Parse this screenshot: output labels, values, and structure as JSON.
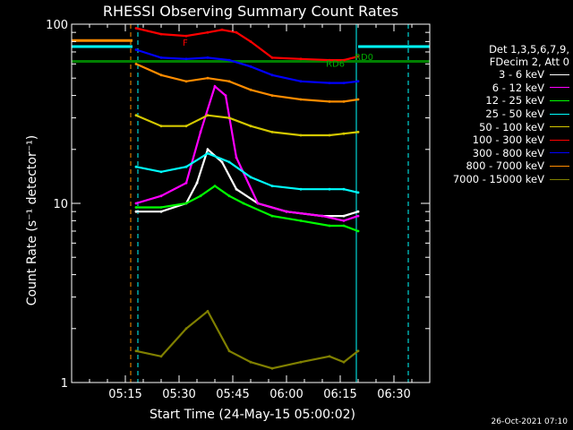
{
  "chart_data": {
    "type": "line",
    "title": "RHESSI Observing Summary Count Rates",
    "xlabel": "Start Time (24-May-15 05:00:02)",
    "ylabel": "Count Rate (s⁻¹ detector⁻¹)",
    "yscale": "log",
    "ylim": [
      1,
      100
    ],
    "xlim_minutes": [
      0,
      100
    ],
    "x_ticks": [
      "05:15",
      "05:30",
      "05:45",
      "06:00",
      "06:15",
      "06:30"
    ],
    "x_tick_minutes": [
      15,
      30,
      45,
      60,
      75,
      90
    ],
    "y_ticks": [
      "1",
      "10",
      "100"
    ],
    "legend_header": [
      "Det 1,3,5,6,7,9,",
      "FDecim 2, Att 0"
    ],
    "series": [
      {
        "name": "3 - 6 keV",
        "color": "#ffffff",
        "x": [
          18,
          25,
          32,
          35,
          38,
          42,
          46,
          52,
          60,
          70,
          76,
          80
        ],
        "y": [
          9,
          9,
          10,
          13,
          20,
          17,
          12,
          10,
          9,
          8.5,
          8.5,
          9
        ]
      },
      {
        "name": "6 - 12 keV",
        "color": "#ff00ff",
        "x": [
          18,
          25,
          32,
          36,
          40,
          43,
          46,
          52,
          60,
          70,
          76,
          80
        ],
        "y": [
          10,
          11,
          13,
          25,
          45,
          40,
          18,
          10,
          9,
          8.5,
          8,
          8.5
        ]
      },
      {
        "name": "12 - 25 keV",
        "color": "#00ff00",
        "x": [
          18,
          25,
          32,
          36,
          40,
          44,
          48,
          56,
          64,
          72,
          76,
          80
        ],
        "y": [
          9.5,
          9.5,
          10,
          11,
          12.5,
          11,
          10,
          8.5,
          8,
          7.5,
          7.5,
          7
        ]
      },
      {
        "name": "25 - 50 keV",
        "color": "#00ffff",
        "x": [
          18,
          25,
          32,
          38,
          44,
          50,
          56,
          64,
          72,
          76,
          80
        ],
        "y": [
          16,
          15,
          16,
          19,
          17,
          14,
          12.5,
          12,
          12,
          12,
          11.5
        ]
      },
      {
        "name": "50 - 100 keV",
        "color": "#d4c800",
        "x": [
          18,
          25,
          32,
          38,
          44,
          50,
          56,
          64,
          72,
          76,
          80
        ],
        "y": [
          31,
          27,
          27,
          31,
          30,
          27,
          25,
          24,
          24,
          24.5,
          25
        ]
      },
      {
        "name": "100 - 300 keV",
        "color": "#ff0000",
        "x": [
          18,
          25,
          32,
          38,
          42,
          46,
          50,
          56,
          64,
          72,
          76,
          80
        ],
        "y": [
          95,
          88,
          86,
          90,
          93,
          90,
          80,
          65,
          64,
          63,
          63,
          66
        ]
      },
      {
        "name": "300 - 800 keV",
        "color": "#0000ff",
        "x": [
          18,
          25,
          32,
          38,
          44,
          50,
          56,
          64,
          72,
          76,
          80
        ],
        "y": [
          72,
          65,
          64,
          65,
          63,
          58,
          52,
          48,
          47,
          47,
          48
        ]
      },
      {
        "name": "800 - 7000 keV",
        "color": "#ff8c00",
        "x": [
          18,
          25,
          32,
          38,
          44,
          50,
          56,
          64,
          72,
          76,
          80
        ],
        "y": [
          60,
          52,
          48,
          50,
          48,
          43,
          40,
          38,
          37,
          37,
          38
        ]
      },
      {
        "name": "7000 - 15000 keV",
        "color": "#808000",
        "x": [
          18,
          25,
          32,
          38,
          44,
          50,
          56,
          64,
          72,
          76,
          80
        ],
        "y": [
          1.5,
          1.4,
          2,
          2.5,
          1.5,
          1.3,
          1.2,
          1.3,
          1.4,
          1.3,
          1.5
        ]
      }
    ],
    "annotations": [
      {
        "text": "F",
        "x": 31,
        "y": 76,
        "color": "#ff0000"
      },
      {
        "text": "RD0",
        "x": 79,
        "y": 63,
        "color": "#00aa00"
      },
      {
        "text": "RD6",
        "x": 71,
        "y": 58,
        "color": "#00aa00"
      }
    ],
    "grid": false,
    "legend_position": "right"
  },
  "timestamp": "26-Oct-2021 07:10"
}
